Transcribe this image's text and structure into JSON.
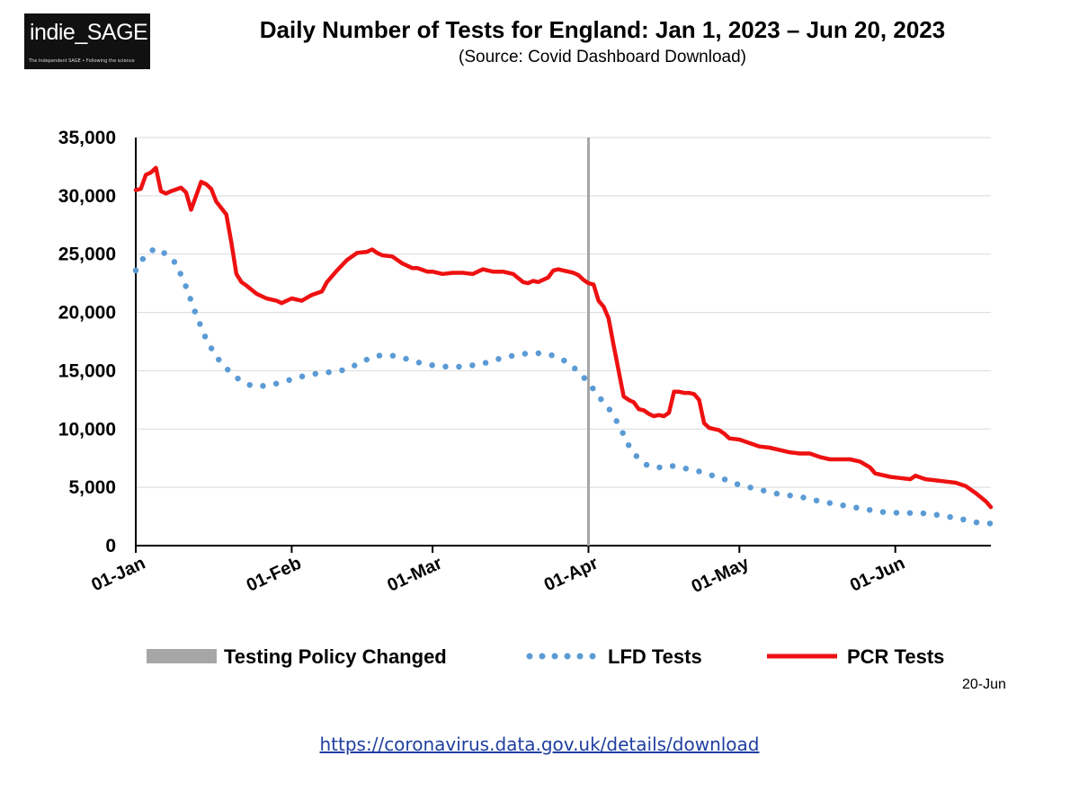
{
  "logo": {
    "name": "indie_SAGE",
    "tagline": "The Independent SAGE • Following the science"
  },
  "header": {
    "title": "Daily Number of Tests for England: Jan 1, 2023 – Jun 20, 2023",
    "subtitle": "(Source: Covid Dashboard Download)"
  },
  "colors": {
    "pcr": "#ee1111",
    "lfd": "#5b9bd5",
    "policy": "#a6a6a6",
    "grid": "#d9d9d9"
  },
  "chart_data": {
    "type": "line",
    "title": "Daily Number of Tests for England: Jan 1, 2023 – Jun 20, 2023",
    "xlim": [
      "2023-01-01",
      "2023-06-20"
    ],
    "ylim": [
      0,
      35000
    ],
    "yticks": [
      {
        "value": 0,
        "label": "0"
      },
      {
        "value": 5000,
        "label": "5,000"
      },
      {
        "value": 10000,
        "label": "10,000"
      },
      {
        "value": 15000,
        "label": "15,000"
      },
      {
        "value": 20000,
        "label": "20,000"
      },
      {
        "value": 25000,
        "label": "25,000"
      },
      {
        "value": 30000,
        "label": "30,000"
      },
      {
        "value": 35000,
        "label": "35,000"
      }
    ],
    "xticks": [
      {
        "date": "2023-01-01",
        "label": "01-Jan"
      },
      {
        "date": "2023-02-01",
        "label": "01-Feb"
      },
      {
        "date": "2023-03-01",
        "label": "01-Mar"
      },
      {
        "date": "2023-04-01",
        "label": "01-Apr"
      },
      {
        "date": "2023-05-01",
        "label": "01-May"
      },
      {
        "date": "2023-06-01",
        "label": "01-Jun"
      }
    ],
    "grid": true,
    "legend_position": "bottom",
    "policy_change": {
      "name": "Testing Policy Changed",
      "date": "2023-04-01"
    },
    "series": [
      {
        "name": "PCR Tests",
        "style": "solid",
        "points": [
          [
            "2023-01-01",
            30500
          ],
          [
            "2023-01-02",
            30600
          ],
          [
            "2023-01-03",
            31800
          ],
          [
            "2023-01-04",
            32000
          ],
          [
            "2023-01-05",
            32400
          ],
          [
            "2023-01-06",
            30400
          ],
          [
            "2023-01-07",
            30200
          ],
          [
            "2023-01-08",
            30400
          ],
          [
            "2023-01-10",
            30700
          ],
          [
            "2023-01-11",
            30300
          ],
          [
            "2023-01-12",
            28800
          ],
          [
            "2023-01-13",
            30000
          ],
          [
            "2023-01-14",
            31200
          ],
          [
            "2023-01-15",
            31000
          ],
          [
            "2023-01-16",
            30600
          ],
          [
            "2023-01-17",
            29500
          ],
          [
            "2023-01-19",
            28400
          ],
          [
            "2023-01-20",
            26000
          ],
          [
            "2023-01-21",
            23300
          ],
          [
            "2023-01-22",
            22600
          ],
          [
            "2023-01-23",
            22300
          ],
          [
            "2023-01-25",
            21600
          ],
          [
            "2023-01-27",
            21200
          ],
          [
            "2023-01-29",
            21000
          ],
          [
            "2023-01-30",
            20800
          ],
          [
            "2023-02-01",
            21200
          ],
          [
            "2023-02-03",
            21000
          ],
          [
            "2023-02-05",
            21500
          ],
          [
            "2023-02-07",
            21800
          ],
          [
            "2023-02-08",
            22600
          ],
          [
            "2023-02-10",
            23600
          ],
          [
            "2023-02-12",
            24500
          ],
          [
            "2023-02-14",
            25100
          ],
          [
            "2023-02-16",
            25200
          ],
          [
            "2023-02-17",
            25400
          ],
          [
            "2023-02-18",
            25100
          ],
          [
            "2023-02-19",
            24900
          ],
          [
            "2023-02-21",
            24800
          ],
          [
            "2023-02-23",
            24200
          ],
          [
            "2023-02-25",
            23800
          ],
          [
            "2023-02-26",
            23800
          ],
          [
            "2023-02-28",
            23500
          ],
          [
            "2023-03-01",
            23500
          ],
          [
            "2023-03-03",
            23300
          ],
          [
            "2023-03-05",
            23400
          ],
          [
            "2023-03-07",
            23400
          ],
          [
            "2023-03-09",
            23300
          ],
          [
            "2023-03-11",
            23700
          ],
          [
            "2023-03-13",
            23500
          ],
          [
            "2023-03-15",
            23500
          ],
          [
            "2023-03-17",
            23300
          ],
          [
            "2023-03-19",
            22600
          ],
          [
            "2023-03-20",
            22500
          ],
          [
            "2023-03-21",
            22700
          ],
          [
            "2023-03-22",
            22600
          ],
          [
            "2023-03-24",
            23000
          ],
          [
            "2023-03-25",
            23600
          ],
          [
            "2023-03-26",
            23700
          ],
          [
            "2023-03-27",
            23600
          ],
          [
            "2023-03-29",
            23400
          ],
          [
            "2023-03-30",
            23200
          ],
          [
            "2023-03-31",
            22800
          ],
          [
            "2023-04-01",
            22500
          ],
          [
            "2023-04-02",
            22400
          ],
          [
            "2023-04-03",
            21000
          ],
          [
            "2023-04-04",
            20500
          ],
          [
            "2023-04-05",
            19500
          ],
          [
            "2023-04-06",
            17200
          ],
          [
            "2023-04-07",
            15000
          ],
          [
            "2023-04-08",
            12800
          ],
          [
            "2023-04-09",
            12500
          ],
          [
            "2023-04-10",
            12300
          ],
          [
            "2023-04-11",
            11700
          ],
          [
            "2023-04-12",
            11600
          ],
          [
            "2023-04-13",
            11300
          ],
          [
            "2023-04-14",
            11100
          ],
          [
            "2023-04-15",
            11200
          ],
          [
            "2023-04-16",
            11100
          ],
          [
            "2023-04-17",
            11400
          ],
          [
            "2023-04-18",
            13200
          ],
          [
            "2023-04-19",
            13200
          ],
          [
            "2023-04-20",
            13100
          ],
          [
            "2023-04-21",
            13100
          ],
          [
            "2023-04-22",
            13000
          ],
          [
            "2023-04-23",
            12500
          ],
          [
            "2023-04-24",
            10500
          ],
          [
            "2023-04-25",
            10100
          ],
          [
            "2023-04-26",
            10000
          ],
          [
            "2023-04-27",
            9900
          ],
          [
            "2023-04-28",
            9600
          ],
          [
            "2023-04-29",
            9200
          ],
          [
            "2023-05-01",
            9100
          ],
          [
            "2023-05-03",
            8800
          ],
          [
            "2023-05-05",
            8500
          ],
          [
            "2023-05-07",
            8400
          ],
          [
            "2023-05-09",
            8200
          ],
          [
            "2023-05-11",
            8000
          ],
          [
            "2023-05-13",
            7900
          ],
          [
            "2023-05-15",
            7900
          ],
          [
            "2023-05-17",
            7600
          ],
          [
            "2023-05-19",
            7400
          ],
          [
            "2023-05-21",
            7400
          ],
          [
            "2023-05-23",
            7400
          ],
          [
            "2023-05-25",
            7200
          ],
          [
            "2023-05-27",
            6700
          ],
          [
            "2023-05-28",
            6200
          ],
          [
            "2023-05-29",
            6100
          ],
          [
            "2023-05-31",
            5900
          ],
          [
            "2023-06-02",
            5800
          ],
          [
            "2023-06-04",
            5700
          ],
          [
            "2023-06-05",
            6000
          ],
          [
            "2023-06-07",
            5700
          ],
          [
            "2023-06-09",
            5600
          ],
          [
            "2023-06-11",
            5500
          ],
          [
            "2023-06-13",
            5400
          ],
          [
            "2023-06-15",
            5100
          ],
          [
            "2023-06-17",
            4500
          ],
          [
            "2023-06-19",
            3800
          ],
          [
            "2023-06-20",
            3300
          ]
        ]
      },
      {
        "name": "LFD Tests",
        "style": "dotted",
        "points": [
          [
            "2023-01-01",
            23600
          ],
          [
            "2023-01-03",
            25000
          ],
          [
            "2023-01-05",
            25500
          ],
          [
            "2023-01-07",
            25000
          ],
          [
            "2023-01-09",
            24200
          ],
          [
            "2023-01-11",
            22200
          ],
          [
            "2023-01-13",
            19800
          ],
          [
            "2023-01-15",
            17700
          ],
          [
            "2023-01-17",
            16200
          ],
          [
            "2023-01-19",
            15200
          ],
          [
            "2023-01-21",
            14400
          ],
          [
            "2023-01-24",
            13700
          ],
          [
            "2023-01-27",
            13700
          ],
          [
            "2023-01-30",
            14000
          ],
          [
            "2023-02-02",
            14400
          ],
          [
            "2023-02-05",
            14700
          ],
          [
            "2023-02-09",
            14900
          ],
          [
            "2023-02-12",
            15100
          ],
          [
            "2023-02-15",
            15800
          ],
          [
            "2023-02-18",
            16300
          ],
          [
            "2023-02-21",
            16300
          ],
          [
            "2023-02-24",
            16000
          ],
          [
            "2023-02-27",
            15600
          ],
          [
            "2023-03-02",
            15400
          ],
          [
            "2023-03-05",
            15300
          ],
          [
            "2023-03-08",
            15400
          ],
          [
            "2023-03-11",
            15600
          ],
          [
            "2023-03-14",
            16000
          ],
          [
            "2023-03-17",
            16300
          ],
          [
            "2023-03-20",
            16500
          ],
          [
            "2023-03-23",
            16500
          ],
          [
            "2023-03-25",
            16300
          ],
          [
            "2023-03-28",
            15700
          ],
          [
            "2023-03-30",
            14900
          ],
          [
            "2023-04-01",
            14000
          ],
          [
            "2023-04-03",
            12800
          ],
          [
            "2023-04-05",
            11800
          ],
          [
            "2023-04-07",
            10400
          ],
          [
            "2023-04-09",
            8600
          ],
          [
            "2023-04-11",
            7400
          ],
          [
            "2023-04-13",
            6800
          ],
          [
            "2023-04-15",
            6700
          ],
          [
            "2023-04-17",
            6900
          ],
          [
            "2023-04-19",
            6700
          ],
          [
            "2023-04-22",
            6500
          ],
          [
            "2023-04-25",
            6100
          ],
          [
            "2023-04-28",
            5700
          ],
          [
            "2023-05-01",
            5200
          ],
          [
            "2023-05-05",
            4800
          ],
          [
            "2023-05-09",
            4400
          ],
          [
            "2023-05-13",
            4200
          ],
          [
            "2023-05-17",
            3800
          ],
          [
            "2023-05-21",
            3500
          ],
          [
            "2023-05-25",
            3200
          ],
          [
            "2023-05-29",
            2900
          ],
          [
            "2023-06-02",
            2800
          ],
          [
            "2023-06-06",
            2800
          ],
          [
            "2023-06-10",
            2600
          ],
          [
            "2023-06-14",
            2300
          ],
          [
            "2023-06-17",
            2000
          ],
          [
            "2023-06-20",
            1900
          ]
        ]
      }
    ]
  },
  "note": {
    "last_date": "20-Jun"
  },
  "footer": {
    "link": "https://coronavirus.data.gov.uk/details/download"
  }
}
